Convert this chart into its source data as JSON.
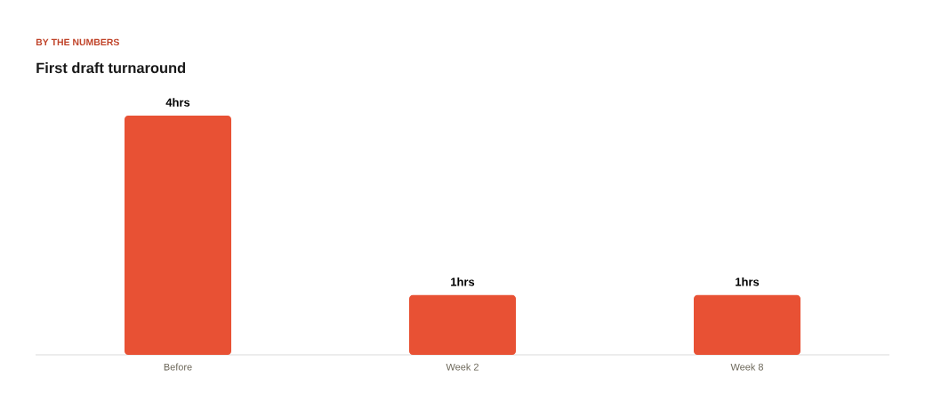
{
  "chart_data": {
    "type": "bar",
    "subtitle": "BY THE NUMBERS",
    "title": "First draft turnaround",
    "categories": [
      "Before",
      "Week 2",
      "Week 8"
    ],
    "values": [
      4,
      1,
      1
    ],
    "value_labels": [
      "4hrs",
      "1hrs",
      "1hrs"
    ],
    "color": "#e85134"
  }
}
